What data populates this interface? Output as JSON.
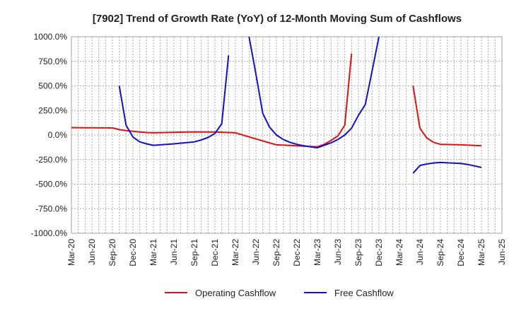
{
  "chart_data": {
    "type": "line",
    "title": "[7902]  Trend of Growth Rate (YoY) of 12-Month Moving Sum of Cashflows",
    "xlabel": "",
    "ylabel": "",
    "ylim": [
      -1000,
      1000
    ],
    "yticks": [
      "1000.0%",
      "750.0%",
      "500.0%",
      "250.0%",
      "0.0%",
      "-250.0%",
      "-500.0%",
      "-750.0%",
      "-1000.0%"
    ],
    "ytick_values": [
      1000,
      750,
      500,
      250,
      0,
      -250,
      -500,
      -750,
      -1000
    ],
    "xticks": [
      "Mar-20",
      "Jun-20",
      "Sep-20",
      "Dec-20",
      "Mar-21",
      "Jun-21",
      "Sep-21",
      "Dec-21",
      "Mar-22",
      "Jun-22",
      "Sep-22",
      "Dec-22",
      "Mar-23",
      "Jun-23",
      "Sep-23",
      "Dec-23",
      "Mar-24",
      "Jun-24",
      "Sep-24",
      "Dec-24",
      "Mar-25",
      "Jun-25"
    ],
    "x_start": "2020-03",
    "x_end": "2025-06",
    "grid": true,
    "legend_position": "bottom",
    "series": [
      {
        "name": "Operating Cashflow",
        "color": "#dd1111",
        "points": [
          [
            "2020-03",
            75
          ],
          [
            "2020-04",
            75
          ],
          [
            "2020-05",
            74
          ],
          [
            "2020-06",
            74
          ],
          [
            "2020-07",
            73
          ],
          [
            "2020-08",
            73
          ],
          [
            "2020-09",
            72
          ],
          [
            "2020-10",
            55
          ],
          [
            "2020-11",
            45
          ],
          [
            "2020-12",
            38
          ],
          [
            "2021-01",
            30
          ],
          [
            "2021-02",
            25
          ],
          [
            "2021-03",
            22
          ],
          [
            "2021-06",
            27
          ],
          [
            "2021-09",
            32
          ],
          [
            "2021-12",
            30
          ],
          [
            "2022-03",
            22
          ],
          [
            "2022-06",
            -40
          ],
          [
            "2022-09",
            -100
          ],
          [
            "2022-12",
            -110
          ],
          [
            "2023-03",
            -120
          ],
          [
            "2023-04",
            -95
          ],
          [
            "2023-05",
            -55
          ],
          [
            "2023-06",
            -10
          ],
          [
            "2023-07",
            100
          ],
          [
            "2023-08",
            830
          ]
        ]
      },
      {
        "name": "Operating Cashflow",
        "color": "#dd1111",
        "points": [
          [
            "2024-05",
            500
          ],
          [
            "2024-06",
            70
          ],
          [
            "2024-07",
            -30
          ],
          [
            "2024-08",
            -75
          ],
          [
            "2024-09",
            -95
          ],
          [
            "2024-12",
            -100
          ],
          [
            "2025-03",
            -110
          ]
        ]
      },
      {
        "name": "Free Cashflow",
        "color": "#1111cc",
        "points": [
          [
            "2020-10",
            500
          ],
          [
            "2020-11",
            100
          ],
          [
            "2020-12",
            -20
          ],
          [
            "2021-01",
            -70
          ],
          [
            "2021-02",
            -90
          ],
          [
            "2021-03",
            -105
          ],
          [
            "2021-06",
            -90
          ],
          [
            "2021-09",
            -70
          ],
          [
            "2021-10",
            -50
          ],
          [
            "2021-11",
            -25
          ],
          [
            "2021-12",
            15
          ],
          [
            "2022-01",
            115
          ],
          [
            "2022-02",
            810
          ]
        ]
      },
      {
        "name": "Free Cashflow",
        "color": "#1111cc",
        "points": [
          [
            "2022-05",
            1000
          ],
          [
            "2022-06",
            620
          ],
          [
            "2022-07",
            220
          ],
          [
            "2022-08",
            80
          ],
          [
            "2022-09",
            0
          ],
          [
            "2022-10",
            -45
          ],
          [
            "2022-11",
            -75
          ],
          [
            "2022-12",
            -95
          ],
          [
            "2023-01",
            -110
          ],
          [
            "2023-03",
            -130
          ],
          [
            "2023-05",
            -80
          ],
          [
            "2023-06",
            -45
          ],
          [
            "2023-07",
            0
          ],
          [
            "2023-08",
            70
          ],
          [
            "2023-09",
            200
          ],
          [
            "2023-10",
            310
          ],
          [
            "2023-11",
            650
          ],
          [
            "2023-12",
            1000
          ]
        ]
      },
      {
        "name": "Free Cashflow",
        "color": "#1111cc",
        "points": [
          [
            "2024-05",
            -390
          ],
          [
            "2024-06",
            -310
          ],
          [
            "2024-07",
            -295
          ],
          [
            "2024-08",
            -285
          ],
          [
            "2024-09",
            -280
          ],
          [
            "2024-12",
            -290
          ],
          [
            "2025-01",
            -300
          ],
          [
            "2025-03",
            -330
          ]
        ]
      }
    ],
    "legend": [
      {
        "label": "Operating Cashflow",
        "color": "#dd1111"
      },
      {
        "label": "Free Cashflow",
        "color": "#1111cc"
      }
    ]
  }
}
